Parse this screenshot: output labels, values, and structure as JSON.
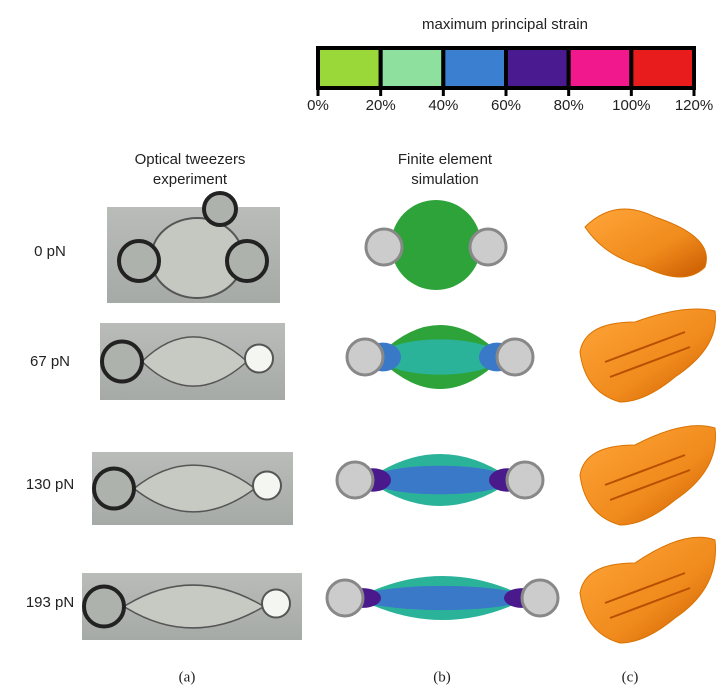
{
  "colorbar": {
    "title": "maximum principal strain",
    "colors": [
      "#9ad83a",
      "#8ee09e",
      "#3a7fd0",
      "#4a1a90",
      "#f0188c",
      "#e81c1c"
    ],
    "tick_labels": [
      "0%",
      "20%",
      "40%",
      "60%",
      "80%",
      "100%",
      "120%"
    ]
  },
  "columns": {
    "a": {
      "title": [
        "Optical tweezers",
        "experiment"
      ],
      "caption": "(a)"
    },
    "b": {
      "title": [
        "Finite element",
        "simulation"
      ],
      "caption": "(b)"
    },
    "c": {
      "caption": "(c)"
    }
  },
  "rows": [
    {
      "label": "0 pN"
    },
    {
      "label": "67 pN"
    },
    {
      "label": "130 pN"
    },
    {
      "label": "193 pN"
    }
  ]
}
